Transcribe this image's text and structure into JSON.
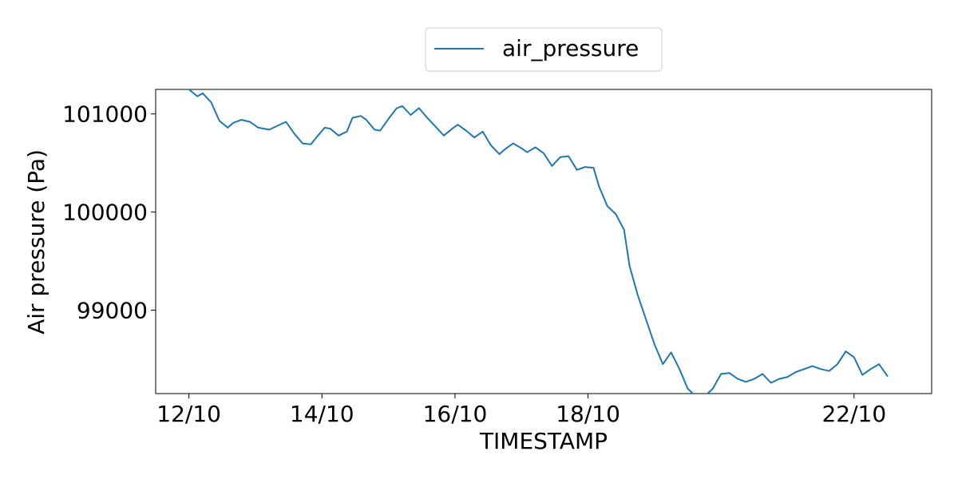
{
  "chart_data": {
    "type": "line",
    "title": "",
    "xlabel": "TIMESTAMP",
    "ylabel": "Air pressure (Pa)",
    "xlim": [
      "2020-10-11T12:00",
      "2020-10-23T04:00"
    ],
    "ylim": [
      98150,
      101250
    ],
    "x_ticks": [
      {
        "label": "12/10",
        "date": "2020-10-12T00:00"
      },
      {
        "label": "14/10",
        "date": "2020-10-14T00:00"
      },
      {
        "label": "16/10",
        "date": "2020-10-16T00:00"
      },
      {
        "label": "18/10",
        "date": "2020-10-18T00:00"
      },
      {
        "label": "22/10",
        "date": "2020-10-22T00:00"
      }
    ],
    "y_ticks": [
      {
        "label": "99000",
        "value": 99000
      },
      {
        "label": "100000",
        "value": 100000
      },
      {
        "label": "101000",
        "value": 101000
      }
    ],
    "grid": false,
    "legend": {
      "position": "top-center",
      "entries": [
        "air_pressure"
      ]
    },
    "colors": {
      "series": "#1f77b4"
    },
    "series": [
      {
        "name": "air_pressure",
        "x": [
          "2020-10-12T00:00",
          "2020-10-12T03:00",
          "2020-10-12T05:00",
          "2020-10-12T08:00",
          "2020-10-12T11:00",
          "2020-10-12T14:00",
          "2020-10-12T16:00",
          "2020-10-12T19:00",
          "2020-10-12T22:00",
          "2020-10-13T01:00",
          "2020-10-13T05:00",
          "2020-10-13T08:00",
          "2020-10-13T11:00",
          "2020-10-13T14:00",
          "2020-10-13T17:00",
          "2020-10-13T20:00",
          "2020-10-13T22:00",
          "2020-10-14T01:00",
          "2020-10-14T03:00",
          "2020-10-14T06:00",
          "2020-10-14T09:00",
          "2020-10-14T11:00",
          "2020-10-14T14:00",
          "2020-10-14T16:00",
          "2020-10-14T19:00",
          "2020-10-14T21:00",
          "2020-10-15T00:00",
          "2020-10-15T03:00",
          "2020-10-15T05:00",
          "2020-10-15T08:00",
          "2020-10-15T11:00",
          "2020-10-15T14:00",
          "2020-10-15T17:00",
          "2020-10-15T20:00",
          "2020-10-15T23:00",
          "2020-10-16T01:00",
          "2020-10-16T04:00",
          "2020-10-16T07:00",
          "2020-10-16T10:00",
          "2020-10-16T13:00",
          "2020-10-16T16:00",
          "2020-10-16T18:00",
          "2020-10-16T21:00",
          "2020-10-17T00:00",
          "2020-10-17T02:00",
          "2020-10-17T05:00",
          "2020-10-17T08:00",
          "2020-10-17T11:00",
          "2020-10-17T14:00",
          "2020-10-17T17:00",
          "2020-10-17T20:00",
          "2020-10-17T23:00",
          "2020-10-18T02:00",
          "2020-10-18T04:00",
          "2020-10-18T07:00",
          "2020-10-18T10:00",
          "2020-10-18T13:00",
          "2020-10-18T15:00",
          "2020-10-18T18:00",
          "2020-10-18T21:00",
          "2020-10-19T00:00",
          "2020-10-19T03:00",
          "2020-10-19T06:00",
          "2020-10-19T09:00",
          "2020-10-19T12:00",
          "2020-10-19T15:00",
          "2020-10-19T18:00",
          "2020-10-19T21:00",
          "2020-10-20T00:00",
          "2020-10-20T03:00",
          "2020-10-20T06:00",
          "2020-10-20T09:00",
          "2020-10-20T12:00",
          "2020-10-20T15:00",
          "2020-10-20T18:00",
          "2020-10-20T21:00",
          "2020-10-21T00:00",
          "2020-10-21T03:00",
          "2020-10-21T06:00",
          "2020-10-21T09:00",
          "2020-10-21T12:00",
          "2020-10-21T15:00",
          "2020-10-21T18:00",
          "2020-10-21T21:00",
          "2020-10-22T00:00",
          "2020-10-22T03:00",
          "2020-10-22T06:00",
          "2020-10-22T09:00",
          "2020-10-22T12:00"
        ],
        "values": [
          101250,
          101180,
          101210,
          101120,
          100930,
          100860,
          100910,
          100940,
          100920,
          100860,
          100840,
          100880,
          100920,
          100800,
          100700,
          100690,
          100760,
          100860,
          100850,
          100780,
          100820,
          100960,
          100980,
          100940,
          100840,
          100830,
          100950,
          101060,
          101080,
          100990,
          101060,
          100960,
          100870,
          100780,
          100850,
          100890,
          100830,
          100760,
          100820,
          100680,
          100590,
          100640,
          100700,
          100650,
          100610,
          100660,
          100600,
          100470,
          100560,
          100570,
          100430,
          100460,
          100450,
          100260,
          100060,
          99980,
          99820,
          99450,
          99150,
          98900,
          98650,
          98450,
          98570,
          98400,
          98200,
          98120,
          98120,
          98200,
          98350,
          98360,
          98300,
          98270,
          98300,
          98350,
          98260,
          98300,
          98320,
          98370,
          98400,
          98430,
          98400,
          98380,
          98450,
          98580,
          98520,
          98340,
          98400,
          98450,
          98330
        ]
      }
    ]
  }
}
